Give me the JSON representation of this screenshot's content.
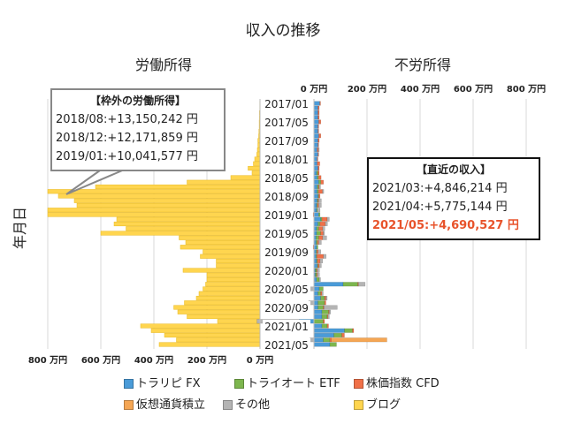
{
  "chart_data": {
    "type": "bar",
    "orientation": "horizontal",
    "title": "収入の推移",
    "ylabel": "年月日",
    "left_panel": {
      "title": "労働所得",
      "xlim": [
        0,
        800
      ],
      "x_ticks": [
        "800 万円",
        "600 万円",
        "400 万円",
        "200 万円",
        "0 万円"
      ],
      "direction": "right-to-left"
    },
    "right_panel": {
      "title": "不労所得",
      "xlim": [
        0,
        800
      ],
      "x_ticks": [
        "0 万円",
        "200 万円",
        "400 万円",
        "600 万円",
        "800 万円"
      ]
    },
    "y_tick_labels": [
      "2017/01",
      "2017/05",
      "2017/09",
      "2018/01",
      "2018/05",
      "2018/09",
      "2019/01",
      "2019/05",
      "2019/09",
      "2020/01",
      "2020/05",
      "2020/09",
      "2021/01",
      "2021/05"
    ],
    "categories": [
      "2017/01",
      "2017/02",
      "2017/03",
      "2017/04",
      "2017/05",
      "2017/06",
      "2017/07",
      "2017/08",
      "2017/09",
      "2017/10",
      "2017/11",
      "2017/12",
      "2018/01",
      "2018/02",
      "2018/03",
      "2018/04",
      "2018/05",
      "2018/06",
      "2018/07",
      "2018/08",
      "2018/09",
      "2018/10",
      "2018/11",
      "2018/12",
      "2019/01",
      "2019/02",
      "2019/03",
      "2019/04",
      "2019/05",
      "2019/06",
      "2019/07",
      "2019/08",
      "2019/09",
      "2019/10",
      "2019/11",
      "2019/12",
      "2020/01",
      "2020/02",
      "2020/03",
      "2020/04",
      "2020/05",
      "2020/06",
      "2020/07",
      "2020/08",
      "2020/09",
      "2020/10",
      "2020/11",
      "2020/12",
      "2021/01",
      "2021/02",
      "2021/03",
      "2021/04",
      "2021/05"
    ],
    "unit": "万円",
    "series": [
      {
        "name": "トラリピ FX",
        "color": "#4a9bd8",
        "panel": "right",
        "values": [
          22,
          15,
          15,
          15,
          18,
          15,
          15,
          18,
          15,
          15,
          12,
          15,
          12,
          12,
          15,
          10,
          12,
          18,
          12,
          12,
          15,
          12,
          10,
          10,
          18,
          25,
          15,
          10,
          10,
          8,
          8,
          10,
          8,
          8,
          10,
          12,
          5,
          5,
          10,
          110,
          20,
          15,
          25,
          15,
          15,
          30,
          30,
          -55,
          30,
          115,
          75,
          35,
          60
        ]
      },
      {
        "name": "トライオート ETF",
        "color": "#7db64e",
        "panel": "right",
        "values": [
          0,
          0,
          0,
          0,
          0,
          0,
          0,
          0,
          0,
          0,
          0,
          0,
          0,
          0,
          0,
          5,
          5,
          8,
          5,
          5,
          3,
          3,
          3,
          3,
          5,
          5,
          8,
          8,
          15,
          10,
          5,
          5,
          3,
          3,
          3,
          3,
          5,
          5,
          10,
          55,
          15,
          10,
          15,
          25,
          20,
          25,
          20,
          35,
          20,
          30,
          30,
          25,
          25
        ]
      },
      {
        "name": "株価指数 CFD",
        "color": "#f07048",
        "panel": "right",
        "values": [
          3,
          5,
          5,
          5,
          8,
          3,
          3,
          8,
          5,
          3,
          5,
          3,
          3,
          10,
          5,
          5,
          10,
          10,
          3,
          15,
          5,
          3,
          5,
          0,
          -3,
          20,
          20,
          15,
          10,
          15,
          5,
          -3,
          5,
          25,
          10,
          5,
          3,
          3,
          0,
          3,
          0,
          5,
          5,
          5,
          3,
          3,
          3,
          5,
          5,
          5,
          10,
          5,
          0
        ]
      },
      {
        "name": "仮想通貨積立",
        "color": "#f5a654",
        "panel": "right",
        "values": [
          0,
          0,
          0,
          0,
          0,
          0,
          0,
          0,
          0,
          0,
          0,
          0,
          0,
          0,
          0,
          0,
          0,
          0,
          0,
          0,
          0,
          0,
          0,
          0,
          0,
          0,
          0,
          0,
          0,
          0,
          0,
          0,
          0,
          0,
          0,
          0,
          0,
          0,
          0,
          0,
          0,
          0,
          0,
          0,
          0,
          0,
          0,
          0,
          0,
          0,
          0,
          210,
          0
        ]
      },
      {
        "name": "その他",
        "color": "#b4b4b4",
        "panel": "right",
        "values": [
          0,
          0,
          0,
          0,
          0,
          0,
          0,
          0,
          0,
          0,
          3,
          0,
          0,
          0,
          0,
          0,
          0,
          0,
          5,
          5,
          0,
          10,
          10,
          10,
          0,
          8,
          8,
          8,
          5,
          15,
          10,
          0,
          10,
          10,
          10,
          8,
          8,
          8,
          5,
          25,
          -45,
          5,
          5,
          -20,
          50,
          5,
          5,
          -160,
          0,
          0,
          0,
          -15,
          0
        ]
      },
      {
        "name": "ブログ",
        "color": "#ffd54f",
        "panel": "left",
        "values": [
          1,
          1,
          2,
          2,
          3,
          3,
          4,
          5,
          8,
          8,
          10,
          12,
          20,
          25,
          45,
          30,
          110,
          275,
          620,
          1315,
          760,
          700,
          690,
          1217,
          1004,
          540,
          550,
          505,
          600,
          305,
          280,
          300,
          215,
          225,
          165,
          165,
          290,
          200,
          200,
          205,
          215,
          230,
          240,
          285,
          325,
          310,
          275,
          160,
          450,
          410,
          360,
          315,
          380
        ]
      }
    ]
  },
  "callout": {
    "heading": "【枠外の労働所得】",
    "lines": [
      "2018/08:+13,150,242 円",
      "2018/12:+12,171,859 円",
      "2019/01:+10,041,577 円"
    ]
  },
  "recent": {
    "heading": "【直近の収入】",
    "lines": [
      "2021/03:+4,846,214 円",
      "2021/04:+5,775,144 円"
    ],
    "highlight": "2021/05:+4,690,527 円",
    "highlight_color": "#e8532b"
  }
}
